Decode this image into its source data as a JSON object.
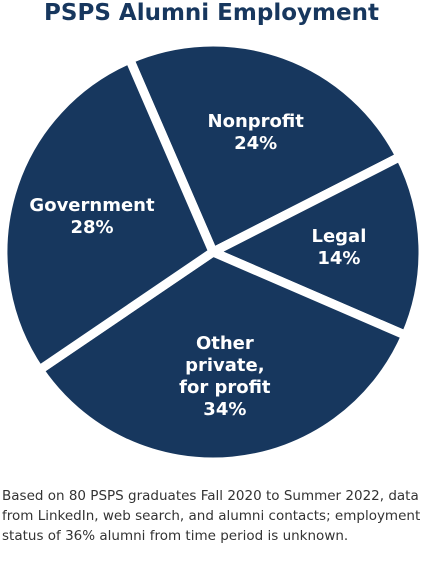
{
  "chart_data": {
    "type": "pie",
    "title": "PSPS Alumni Employment",
    "categories": [
      "Nonprofit",
      "Legal",
      "Other private, for profit",
      "Government"
    ],
    "values": [
      24,
      14,
      34,
      28
    ],
    "value_labels": [
      "24%",
      "14%",
      "34%",
      "28%"
    ],
    "color": "#17375e",
    "footnote": "Based on 80 PSPS graduates Fall 2020 to Summer 2022, data from LinkedIn, web search, and alumni contacts; employment status of 36% alumni from time period is unknown."
  }
}
